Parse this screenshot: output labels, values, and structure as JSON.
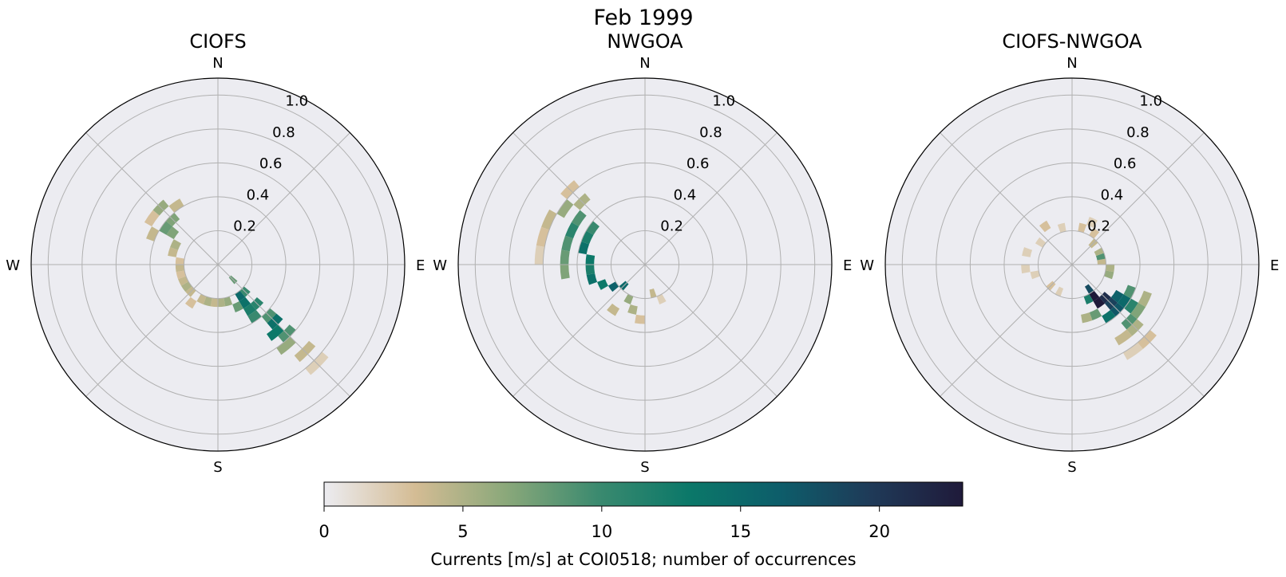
{
  "figure": {
    "suptitle": "Feb 1999"
  },
  "colors": {
    "face": "#ececf1",
    "grid": "#b0b0b0",
    "colormap": [
      "#ececf1",
      "#d4bc94",
      "#8aa87a",
      "#3b8a6f",
      "#0b7869",
      "#0d5d6a",
      "#1f3a58",
      "#1f1a3a"
    ]
  },
  "chart_data": [
    {
      "type": "polar-histogram",
      "title": "CIOFS",
      "direction_labels": [
        "N",
        "E",
        "S",
        "W"
      ],
      "radial_ticks": [
        "0.2",
        "0.4",
        "0.6",
        "0.8",
        "1.0"
      ],
      "rlim": [
        0,
        1.1
      ],
      "angular_bin_deg": 10,
      "radial_bin": 0.05,
      "bins": [
        {
          "dir": 135,
          "r": 0.1,
          "count": 8
        },
        {
          "dir": 135,
          "r": 0.2,
          "count": 10
        },
        {
          "dir": 145,
          "r": 0.2,
          "count": 15
        },
        {
          "dir": 145,
          "r": 0.25,
          "count": 14
        },
        {
          "dir": 145,
          "r": 0.3,
          "count": 12
        },
        {
          "dir": 135,
          "r": 0.3,
          "count": 11
        },
        {
          "dir": 145,
          "r": 0.35,
          "count": 10
        },
        {
          "dir": 135,
          "r": 0.4,
          "count": 9
        },
        {
          "dir": 135,
          "r": 0.45,
          "count": 14
        },
        {
          "dir": 140,
          "r": 0.5,
          "count": 13
        },
        {
          "dir": 135,
          "r": 0.55,
          "count": 9
        },
        {
          "dir": 140,
          "r": 0.6,
          "count": 6
        },
        {
          "dir": 135,
          "r": 0.7,
          "count": 4
        },
        {
          "dir": 135,
          "r": 0.8,
          "count": 2
        },
        {
          "dir": 155,
          "r": 0.25,
          "count": 8
        },
        {
          "dir": 165,
          "r": 0.2,
          "count": 6
        },
        {
          "dir": 175,
          "r": 0.2,
          "count": 5
        },
        {
          "dir": 185,
          "r": 0.2,
          "count": 4
        },
        {
          "dir": 195,
          "r": 0.2,
          "count": 5
        },
        {
          "dir": 205,
          "r": 0.2,
          "count": 4
        },
        {
          "dir": 215,
          "r": 0.25,
          "count": 3
        },
        {
          "dir": 225,
          "r": 0.2,
          "count": 4
        },
        {
          "dir": 235,
          "r": 0.2,
          "count": 5
        },
        {
          "dir": 245,
          "r": 0.2,
          "count": 4
        },
        {
          "dir": 255,
          "r": 0.2,
          "count": 3
        },
        {
          "dir": 265,
          "r": 0.2,
          "count": 4
        },
        {
          "dir": 275,
          "r": 0.2,
          "count": 3
        },
        {
          "dir": 285,
          "r": 0.25,
          "count": 4
        },
        {
          "dir": 295,
          "r": 0.25,
          "count": 5
        },
        {
          "dir": 305,
          "r": 0.3,
          "count": 7
        },
        {
          "dir": 305,
          "r": 0.35,
          "count": 8
        },
        {
          "dir": 315,
          "r": 0.35,
          "count": 7
        },
        {
          "dir": 315,
          "r": 0.45,
          "count": 6
        },
        {
          "dir": 325,
          "r": 0.4,
          "count": 4
        },
        {
          "dir": 305,
          "r": 0.45,
          "count": 3
        },
        {
          "dir": 295,
          "r": 0.4,
          "count": 4
        }
      ]
    },
    {
      "type": "polar-histogram",
      "title": "NWGOA",
      "direction_labels": [
        "N",
        "E",
        "S",
        "W"
      ],
      "radial_ticks": [
        "0.2",
        "0.4",
        "0.6",
        "0.8",
        "1.0"
      ],
      "rlim": [
        0,
        1.1
      ],
      "angular_bin_deg": 10,
      "radial_bin": 0.05,
      "bins": [
        {
          "dir": 225,
          "r": 0.15,
          "count": 15
        },
        {
          "dir": 235,
          "r": 0.2,
          "count": 16
        },
        {
          "dir": 245,
          "r": 0.25,
          "count": 13
        },
        {
          "dir": 255,
          "r": 0.3,
          "count": 14
        },
        {
          "dir": 265,
          "r": 0.3,
          "count": 12
        },
        {
          "dir": 275,
          "r": 0.3,
          "count": 13
        },
        {
          "dir": 285,
          "r": 0.35,
          "count": 14
        },
        {
          "dir": 295,
          "r": 0.35,
          "count": 12
        },
        {
          "dir": 305,
          "r": 0.35,
          "count": 10
        },
        {
          "dir": 305,
          "r": 0.45,
          "count": 9
        },
        {
          "dir": 295,
          "r": 0.45,
          "count": 11
        },
        {
          "dir": 285,
          "r": 0.45,
          "count": 9
        },
        {
          "dir": 275,
          "r": 0.45,
          "count": 8
        },
        {
          "dir": 265,
          "r": 0.45,
          "count": 7
        },
        {
          "dir": 305,
          "r": 0.55,
          "count": 6
        },
        {
          "dir": 315,
          "r": 0.5,
          "count": 5
        },
        {
          "dir": 315,
          "r": 0.6,
          "count": 3
        },
        {
          "dir": 295,
          "r": 0.6,
          "count": 4
        },
        {
          "dir": 285,
          "r": 0.6,
          "count": 3
        },
        {
          "dir": 275,
          "r": 0.6,
          "count": 2
        },
        {
          "dir": 205,
          "r": 0.2,
          "count": 6
        },
        {
          "dir": 195,
          "r": 0.25,
          "count": 5
        },
        {
          "dir": 185,
          "r": 0.3,
          "count": 3
        },
        {
          "dir": 215,
          "r": 0.3,
          "count": 4
        },
        {
          "dir": 165,
          "r": 0.15,
          "count": 4
        },
        {
          "dir": 155,
          "r": 0.2,
          "count": 2
        }
      ]
    },
    {
      "type": "polar-histogram",
      "title": "CIOFS-NWGOA",
      "direction_labels": [
        "N",
        "E",
        "S",
        "W"
      ],
      "radial_ticks": [
        "0.2",
        "0.4",
        "0.6",
        "0.8",
        "1.0"
      ],
      "rlim": [
        0,
        1.1
      ],
      "angular_bin_deg": 10,
      "radial_bin": 0.05,
      "bins": [
        {
          "dir": 145,
          "r": 0.15,
          "count": 18
        },
        {
          "dir": 145,
          "r": 0.2,
          "count": 23
        },
        {
          "dir": 145,
          "r": 0.25,
          "count": 23
        },
        {
          "dir": 135,
          "r": 0.25,
          "count": 21
        },
        {
          "dir": 135,
          "r": 0.3,
          "count": 19
        },
        {
          "dir": 125,
          "r": 0.3,
          "count": 16
        },
        {
          "dir": 135,
          "r": 0.35,
          "count": 17
        },
        {
          "dir": 125,
          "r": 0.35,
          "count": 15
        },
        {
          "dir": 145,
          "r": 0.35,
          "count": 14
        },
        {
          "dir": 125,
          "r": 0.4,
          "count": 11
        },
        {
          "dir": 115,
          "r": 0.35,
          "count": 9
        },
        {
          "dir": 135,
          "r": 0.45,
          "count": 9
        },
        {
          "dir": 125,
          "r": 0.45,
          "count": 7
        },
        {
          "dir": 115,
          "r": 0.45,
          "count": 5
        },
        {
          "dir": 135,
          "r": 0.5,
          "count": 5
        },
        {
          "dir": 145,
          "r": 0.5,
          "count": 4
        },
        {
          "dir": 135,
          "r": 0.6,
          "count": 3
        },
        {
          "dir": 145,
          "r": 0.6,
          "count": 2
        },
        {
          "dir": 155,
          "r": 0.2,
          "count": 12
        },
        {
          "dir": 155,
          "r": 0.3,
          "count": 8
        },
        {
          "dir": 165,
          "r": 0.3,
          "count": 5
        },
        {
          "dir": 105,
          "r": 0.2,
          "count": 6
        },
        {
          "dir": 95,
          "r": 0.2,
          "count": 5
        },
        {
          "dir": 85,
          "r": 0.15,
          "count": 4
        },
        {
          "dir": 75,
          "r": 0.15,
          "count": 9
        },
        {
          "dir": 65,
          "r": 0.15,
          "count": 5
        },
        {
          "dir": 45,
          "r": 0.15,
          "count": 4
        },
        {
          "dir": 35,
          "r": 0.2,
          "count": 3
        },
        {
          "dir": 25,
          "r": 0.25,
          "count": 2
        },
        {
          "dir": 15,
          "r": 0.2,
          "count": 3
        },
        {
          "dir": 345,
          "r": 0.2,
          "count": 2
        },
        {
          "dir": 325,
          "r": 0.25,
          "count": 3
        },
        {
          "dir": 305,
          "r": 0.2,
          "count": 2
        },
        {
          "dir": 285,
          "r": 0.25,
          "count": 2
        },
        {
          "dir": 265,
          "r": 0.25,
          "count": 2
        },
        {
          "dir": 255,
          "r": 0.2,
          "count": 2
        },
        {
          "dir": 225,
          "r": 0.15,
          "count": 3
        },
        {
          "dir": 205,
          "r": 0.15,
          "count": 2
        }
      ]
    }
  ],
  "colorbar": {
    "min": 0,
    "max": 23,
    "ticks": [
      "0",
      "5",
      "10",
      "15",
      "20"
    ],
    "label": "Currents [m/s] at COI0518; number of occurrences"
  }
}
